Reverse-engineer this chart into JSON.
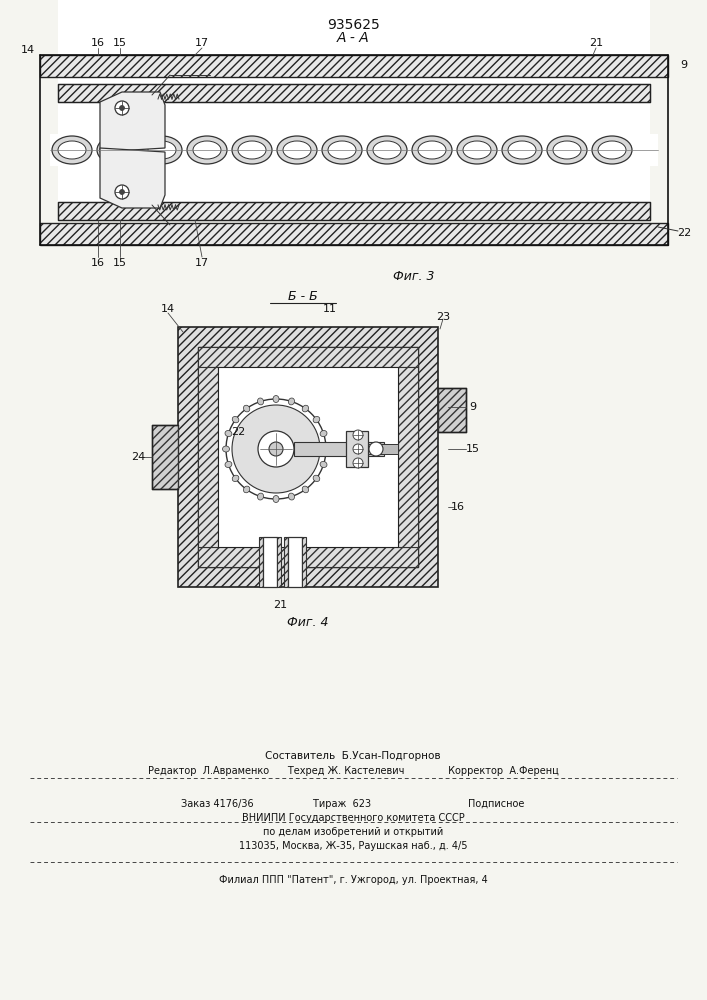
{
  "patent_number": "935625",
  "fig3_label": "А - А",
  "fig3_caption": "Фиг. 3",
  "fig4_caption": "Фиг. 4",
  "fig4_section": "Б - Б",
  "bottom_text_line1": "Составитель  Б.Усан-Подгорнов",
  "bottom_text_line2": "Редактор  Л.Авраменко      Техред Ж. Кастелевич              Корректор  А.Ференц",
  "bottom_text_line3": "Заказ 4176/36                   Тираж  623                               Подписное",
  "bottom_text_line4": "ВНИИПИ Государственного комитета СССР",
  "bottom_text_line5": "по делам изобретений и открытий",
  "bottom_text_line6": "113035, Москва, Ж-35, Раушская наб., д. 4/5",
  "bottom_text_line7": "Филиал ППП \"Патент\", г. Ужгород, ул. Проектная, 4",
  "bg_color": "#f5f5f0",
  "line_color": "#1a1a1a"
}
